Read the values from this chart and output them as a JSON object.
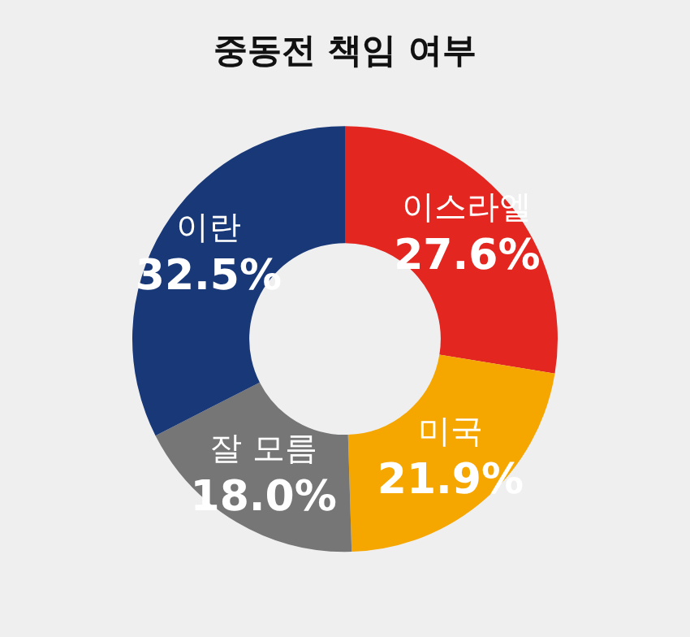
{
  "chart_data": {
    "type": "donut",
    "title": "중동전 책임 여부",
    "categories": [
      "이스라엘",
      "미국",
      "잘 모름",
      "이란"
    ],
    "values": [
      27.6,
      21.9,
      18.0,
      32.5
    ],
    "colors": [
      "#e3261f",
      "#f5a700",
      "#767676",
      "#183878"
    ],
    "value_labels": [
      "27.6%",
      "21.9%",
      "18.0%",
      "32.5%"
    ],
    "legend": false
  }
}
